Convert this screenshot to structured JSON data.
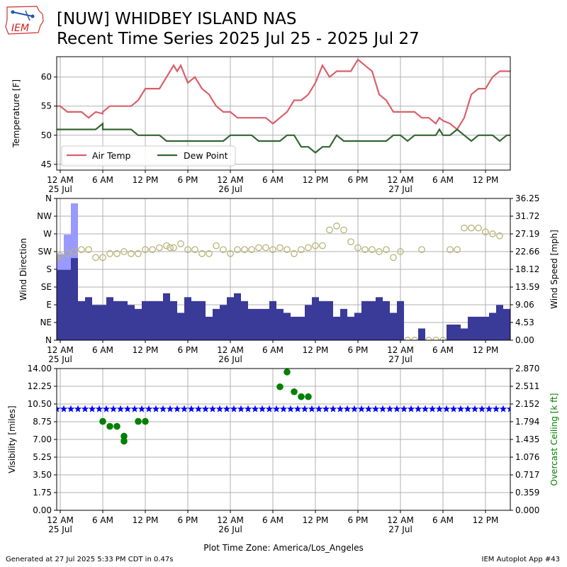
{
  "header": {
    "logo_text": "IEM",
    "title_line1": "[NUW] WHIDBEY ISLAND NAS",
    "title_line2": "Recent Time Series 2025 Jul 25 - 2025 Jul 27"
  },
  "footer": {
    "generated": "Generated at 27 Jul 2025 5:33 PM CDT in 0.47s",
    "app": "IEM Autoplot App #43"
  },
  "time_axis": {
    "range_hours": [
      -0.5,
      63.5
    ],
    "ticks": [
      {
        "h": 0,
        "label": "12 AM",
        "date": "25 Jul"
      },
      {
        "h": 6,
        "label": "6 AM"
      },
      {
        "h": 12,
        "label": "12 PM"
      },
      {
        "h": 18,
        "label": "6 PM"
      },
      {
        "h": 24,
        "label": "12 AM",
        "date": "26 Jul"
      },
      {
        "h": 30,
        "label": "6 AM"
      },
      {
        "h": 36,
        "label": "12 PM"
      },
      {
        "h": 42,
        "label": "6 PM"
      },
      {
        "h": 48,
        "label": "12 AM",
        "date": "27 Jul"
      },
      {
        "h": 54,
        "label": "6 AM"
      },
      {
        "h": 60,
        "label": "12 PM"
      }
    ],
    "xlabel": "Plot Time Zone: America/Los_Angeles"
  },
  "colors": {
    "air_temp": "#d9606a",
    "dew_point": "#336633",
    "wind_speed": "#3a3a99",
    "wind_gust": "#9999ff",
    "wind_dir": "#b5b57a",
    "visibility": "#0000ff",
    "ceiling": "#008000",
    "grid": "#b0b0b0"
  },
  "chart_data": [
    {
      "type": "line",
      "panel": "temperature",
      "ylabel": "Temperature [F]",
      "ylim": [
        44,
        63.5
      ],
      "yticks": [
        45,
        50,
        55,
        60
      ],
      "legend": "lower-left",
      "grid": true,
      "x_unit": "hours since 25 Jul 12 AM",
      "series": [
        {
          "name": "Air Temp",
          "points": [
            [
              -0.5,
              55
            ],
            [
              0,
              55
            ],
            [
              1,
              54
            ],
            [
              2,
              54
            ],
            [
              3,
              54
            ],
            [
              4,
              53
            ],
            [
              5,
              54
            ],
            [
              6,
              53.7
            ],
            [
              6,
              54
            ],
            [
              7,
              55
            ],
            [
              8,
              55
            ],
            [
              9,
              55
            ],
            [
              10,
              55
            ],
            [
              11,
              56
            ],
            [
              12,
              58
            ],
            [
              13,
              58
            ],
            [
              14,
              58
            ],
            [
              15,
              60
            ],
            [
              16,
              62
            ],
            [
              16.5,
              61
            ],
            [
              17,
              62
            ],
            [
              18,
              59
            ],
            [
              19,
              60
            ],
            [
              20,
              58
            ],
            [
              21,
              57
            ],
            [
              22,
              55
            ],
            [
              23,
              54
            ],
            [
              24,
              54
            ],
            [
              25,
              53
            ],
            [
              26,
              53
            ],
            [
              27,
              53
            ],
            [
              28,
              53
            ],
            [
              29,
              53
            ],
            [
              30,
              52
            ],
            [
              31,
              53
            ],
            [
              32,
              54
            ],
            [
              33,
              56
            ],
            [
              34,
              56
            ],
            [
              35,
              57
            ],
            [
              36,
              59
            ],
            [
              37,
              62
            ],
            [
              38,
              60
            ],
            [
              39,
              61
            ],
            [
              40,
              61
            ],
            [
              41,
              61
            ],
            [
              42,
              63
            ],
            [
              43,
              62
            ],
            [
              44,
              61
            ],
            [
              45,
              57
            ],
            [
              46,
              56
            ],
            [
              47,
              54
            ],
            [
              48,
              54
            ],
            [
              49,
              54
            ],
            [
              50,
              54
            ],
            [
              51,
              53
            ],
            [
              52,
              53
            ],
            [
              53,
              52
            ],
            [
              53.5,
              53
            ],
            [
              54,
              52.5
            ],
            [
              55,
              52
            ],
            [
              56,
              51
            ],
            [
              57,
              53
            ],
            [
              58,
              57
            ],
            [
              59,
              58
            ],
            [
              60,
              58
            ],
            [
              61,
              60
            ],
            [
              62,
              61
            ],
            [
              63,
              61
            ],
            [
              64,
              61
            ],
            [
              65,
              62
            ]
          ]
        },
        {
          "name": "Dew Point",
          "points": [
            [
              -0.5,
              51
            ],
            [
              0,
              51
            ],
            [
              1,
              51
            ],
            [
              2,
              51
            ],
            [
              3,
              51
            ],
            [
              4,
              51
            ],
            [
              5,
              51
            ],
            [
              6,
              52
            ],
            [
              6,
              51
            ],
            [
              7,
              51
            ],
            [
              8,
              51
            ],
            [
              9,
              51
            ],
            [
              10,
              51
            ],
            [
              11,
              50
            ],
            [
              12,
              50
            ],
            [
              13,
              50
            ],
            [
              14,
              50
            ],
            [
              15,
              49
            ],
            [
              16,
              49
            ],
            [
              17,
              49
            ],
            [
              18,
              49
            ],
            [
              19,
              49
            ],
            [
              20,
              49
            ],
            [
              21,
              49
            ],
            [
              22,
              49
            ],
            [
              23,
              49
            ],
            [
              24,
              50
            ],
            [
              25,
              50
            ],
            [
              26,
              50
            ],
            [
              27,
              50
            ],
            [
              28,
              49
            ],
            [
              29,
              49
            ],
            [
              30,
              49
            ],
            [
              31,
              49
            ],
            [
              32,
              50
            ],
            [
              33,
              50
            ],
            [
              34,
              48
            ],
            [
              35,
              48
            ],
            [
              36,
              47
            ],
            [
              37,
              48
            ],
            [
              38,
              48
            ],
            [
              39,
              50
            ],
            [
              40,
              49
            ],
            [
              41,
              49
            ],
            [
              42,
              49
            ],
            [
              43,
              49
            ],
            [
              44,
              49
            ],
            [
              45,
              49
            ],
            [
              46,
              49
            ],
            [
              47,
              50
            ],
            [
              48,
              50
            ],
            [
              49,
              49
            ],
            [
              50,
              50
            ],
            [
              51,
              50
            ],
            [
              52,
              50
            ],
            [
              53,
              50
            ],
            [
              53.5,
              51
            ],
            [
              54,
              50
            ],
            [
              55,
              50
            ],
            [
              56,
              51
            ],
            [
              57,
              50
            ],
            [
              58,
              49
            ],
            [
              59,
              50
            ],
            [
              60,
              50
            ],
            [
              61,
              50
            ],
            [
              62,
              49
            ],
            [
              63,
              50
            ],
            [
              64,
              50
            ],
            [
              65,
              50
            ]
          ]
        }
      ]
    },
    {
      "type": "bar",
      "panel": "wind",
      "ylabel": "Wind Direction",
      "ylabel_right": "Wind Speed [mph]",
      "ylim_dir": [
        0,
        360
      ],
      "dir_ticks": [
        "N",
        "NE",
        "E",
        "SE",
        "S",
        "SW",
        "W",
        "NW",
        "N"
      ],
      "ylim_speed": [
        0,
        36.25
      ],
      "speed_ticks": [
        "0.00",
        "4.53",
        "9.06",
        "13.59",
        "18.12",
        "22.66",
        "27.19",
        "31.72",
        "36.25"
      ],
      "grid": true,
      "x_unit": "hours since 25 Jul 12 AM",
      "gust": [
        [
          0,
          22
        ],
        [
          1,
          27
        ],
        [
          2,
          35
        ]
      ],
      "speed": [
        [
          0,
          18
        ],
        [
          1,
          18
        ],
        [
          2,
          21
        ],
        [
          3,
          10
        ],
        [
          4,
          11
        ],
        [
          5,
          9
        ],
        [
          6,
          9
        ],
        [
          7,
          11
        ],
        [
          8,
          10
        ],
        [
          9,
          10
        ],
        [
          10,
          9
        ],
        [
          11,
          8
        ],
        [
          12,
          10
        ],
        [
          13,
          10
        ],
        [
          14,
          10
        ],
        [
          15,
          12
        ],
        [
          16,
          10
        ],
        [
          17,
          7
        ],
        [
          18,
          11
        ],
        [
          19,
          10
        ],
        [
          20,
          10
        ],
        [
          21,
          6
        ],
        [
          22,
          8
        ],
        [
          23,
          9
        ],
        [
          24,
          11
        ],
        [
          25,
          12
        ],
        [
          26,
          10
        ],
        [
          27,
          8
        ],
        [
          28,
          8
        ],
        [
          29,
          8
        ],
        [
          30,
          10
        ],
        [
          31,
          8
        ],
        [
          32,
          7
        ],
        [
          33,
          6
        ],
        [
          34,
          6
        ],
        [
          35,
          9
        ],
        [
          36,
          11
        ],
        [
          37,
          10
        ],
        [
          38,
          10
        ],
        [
          39,
          6
        ],
        [
          40,
          8
        ],
        [
          41,
          6
        ],
        [
          42,
          7
        ],
        [
          43,
          10
        ],
        [
          44,
          10
        ],
        [
          45,
          11
        ],
        [
          46,
          10
        ],
        [
          47,
          7
        ],
        [
          48,
          10
        ],
        [
          49,
          0
        ],
        [
          50,
          0
        ],
        [
          51,
          3
        ],
        [
          52,
          0
        ],
        [
          53,
          0
        ],
        [
          54,
          0
        ],
        [
          55,
          4
        ],
        [
          56,
          4
        ],
        [
          57,
          3
        ],
        [
          58,
          6
        ],
        [
          59,
          6
        ],
        [
          60,
          6
        ],
        [
          61,
          7
        ],
        [
          62,
          9
        ],
        [
          63,
          8
        ]
      ],
      "direction": [
        [
          -0.5,
          210
        ],
        [
          0,
          215
        ],
        [
          1,
          220
        ],
        [
          2,
          225
        ],
        [
          3,
          230
        ],
        [
          4,
          230
        ],
        [
          5,
          210
        ],
        [
          6,
          210
        ],
        [
          7,
          220
        ],
        [
          8,
          220
        ],
        [
          9,
          225
        ],
        [
          10,
          220
        ],
        [
          11,
          220
        ],
        [
          12,
          230
        ],
        [
          13,
          230
        ],
        [
          14,
          235
        ],
        [
          15,
          240
        ],
        [
          15.5,
          235
        ],
        [
          16,
          235
        ],
        [
          17,
          245
        ],
        [
          18,
          230
        ],
        [
          19,
          230
        ],
        [
          20,
          220
        ],
        [
          21,
          220
        ],
        [
          22,
          240
        ],
        [
          23,
          230
        ],
        [
          24,
          220
        ],
        [
          25,
          230
        ],
        [
          26,
          230
        ],
        [
          27,
          230
        ],
        [
          28,
          235
        ],
        [
          29,
          235
        ],
        [
          30,
          230
        ],
        [
          31,
          235
        ],
        [
          32,
          230
        ],
        [
          33,
          220
        ],
        [
          34,
          230
        ],
        [
          35,
          235
        ],
        [
          36,
          240
        ],
        [
          37,
          240
        ],
        [
          38,
          280
        ],
        [
          39,
          290
        ],
        [
          40,
          280
        ],
        [
          41,
          250
        ],
        [
          42,
          235
        ],
        [
          43,
          230
        ],
        [
          44,
          230
        ],
        [
          45,
          225
        ],
        [
          46,
          230
        ],
        [
          47,
          210
        ],
        [
          48,
          225
        ],
        [
          49,
          0
        ],
        [
          50,
          0
        ],
        [
          51,
          230
        ],
        [
          52,
          0
        ],
        [
          53,
          0
        ],
        [
          54,
          0
        ],
        [
          55,
          230
        ],
        [
          56,
          230
        ],
        [
          57,
          285
        ],
        [
          58,
          285
        ],
        [
          59,
          285
        ],
        [
          60,
          275
        ],
        [
          61,
          270
        ],
        [
          62,
          265
        ]
      ]
    },
    {
      "type": "scatter",
      "panel": "visibility",
      "ylabel": "Visibility [miles]",
      "ylabel_right": "Overcast Ceiling [k ft]",
      "ylim_vis": [
        0,
        14
      ],
      "vis_ticks": [
        "0.00",
        "1.75",
        "3.50",
        "5.25",
        "7.00",
        "8.75",
        "10.50",
        "12.25",
        "14.00"
      ],
      "ylim_ceiling": [
        0,
        2.87
      ],
      "ceiling_ticks": [
        "0.000",
        "0.359",
        "0.717",
        "1.076",
        "1.435",
        "1.794",
        "2.152",
        "2.511",
        "2.870"
      ],
      "grid": true,
      "x_unit": "hours since 25 Jul 12 AM",
      "visibility_value": 10,
      "visibility_hours": [
        -0.5,
        65
      ],
      "ceiling": [
        [
          6,
          1.8
        ],
        [
          7,
          1.7
        ],
        [
          8,
          1.7
        ],
        [
          9,
          1.5
        ],
        [
          9,
          1.4
        ],
        [
          11,
          1.8
        ],
        [
          12,
          1.8
        ],
        [
          31,
          2.5
        ],
        [
          32,
          2.8
        ],
        [
          33,
          2.4
        ],
        [
          34,
          2.3
        ],
        [
          35,
          2.3
        ]
      ]
    }
  ]
}
